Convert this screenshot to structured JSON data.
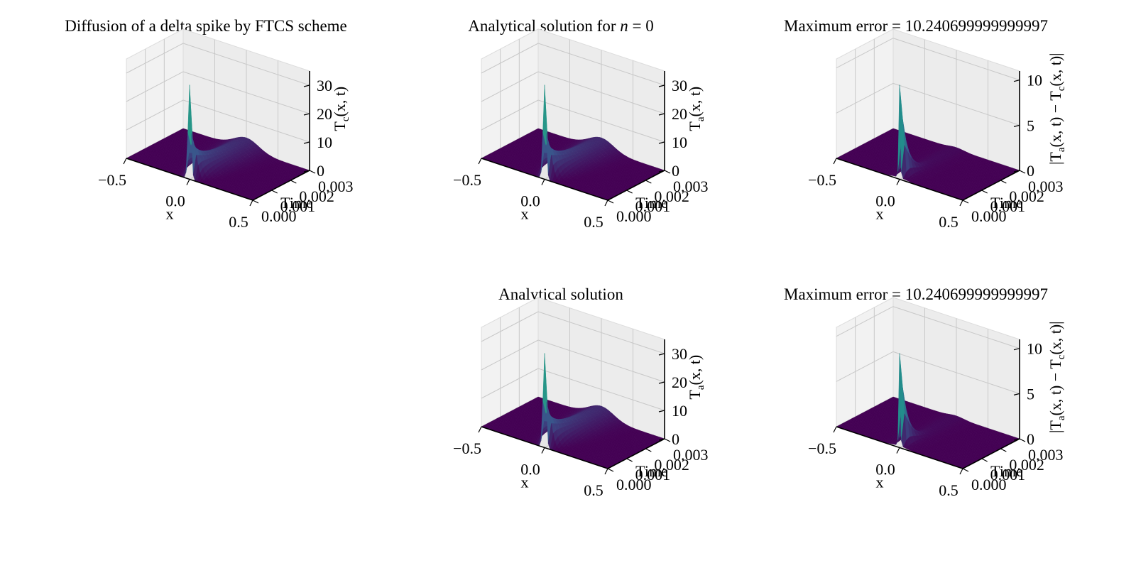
{
  "figure": {
    "panels": [
      {
        "id": "p1",
        "row": 0,
        "col": 0,
        "title": "Diffusion of a delta spike by FTCS scheme",
        "xlabel": "x",
        "ylabel": "Time",
        "zlabel_main": "T",
        "zlabel_sub": "c",
        "zlabel_rest": "(x, t)",
        "x_ticks": [
          "−0.5",
          "0.0",
          "0.5"
        ],
        "y_ticks": [
          "0.000",
          "0.001",
          "0.002",
          "0.003"
        ],
        "z_ticks": [
          "0",
          "10",
          "20",
          "30"
        ],
        "zmax": 35,
        "surface": "solution"
      },
      {
        "id": "p2",
        "row": 0,
        "col": 1,
        "title_text": "Analytical solution for ",
        "title_var": "n",
        "title_rest": " = 0",
        "xlabel": "x",
        "ylabel": "Time",
        "zlabel_main": "T",
        "zlabel_sub": "a",
        "zlabel_rest": "(x, t)",
        "x_ticks": [
          "−0.5",
          "0.0",
          "0.5"
        ],
        "y_ticks": [
          "0.000",
          "0.001",
          "0.002",
          "0.003"
        ],
        "z_ticks": [
          "0",
          "10",
          "20",
          "30"
        ],
        "zmax": 35,
        "surface": "solution"
      },
      {
        "id": "p3",
        "row": 0,
        "col": 2,
        "title": "Maximum error = 10.240699999999997",
        "xlabel": "x",
        "ylabel": "Time",
        "zlabel_main": "|T",
        "zlabel_sub": "a",
        "zlabel_rest": "(x, t) − T",
        "zlabel_sub2": "c",
        "zlabel_rest2": "(x, t)|",
        "x_ticks": [
          "−0.5",
          "0.0",
          "0.5"
        ],
        "y_ticks": [
          "0.000",
          "0.001",
          "0.002",
          "0.003"
        ],
        "z_ticks": [
          "0",
          "5",
          "10"
        ],
        "zmax": 11,
        "surface": "error"
      },
      {
        "id": "p4",
        "row": 1,
        "col": 1,
        "title": "Analytical solution",
        "xlabel": "x",
        "ylabel": "Time",
        "zlabel_main": "T",
        "zlabel_sub": "a",
        "zlabel_rest": "(x, t)",
        "x_ticks": [
          "−0.5",
          "0.0",
          "0.5"
        ],
        "y_ticks": [
          "0.000",
          "0.001",
          "0.002",
          "0.003"
        ],
        "z_ticks": [
          "0",
          "10",
          "20",
          "30"
        ],
        "zmax": 35,
        "surface": "solution"
      },
      {
        "id": "p5",
        "row": 1,
        "col": 2,
        "title": "Maximum error = 10.240699999999997",
        "xlabel": "x",
        "ylabel": "Time",
        "zlabel_main": "|T",
        "zlabel_sub": "a",
        "zlabel_rest": "(x, t) − T",
        "zlabel_sub2": "c",
        "zlabel_rest2": "(x, t)|",
        "x_ticks": [
          "−0.5",
          "0.0",
          "0.5"
        ],
        "y_ticks": [
          "0.000",
          "0.001",
          "0.002",
          "0.003"
        ],
        "z_ticks": [
          "0",
          "5",
          "10"
        ],
        "zmax": 11,
        "surface": "error"
      }
    ]
  },
  "chart_data": [
    {
      "type": "surface",
      "title": "Diffusion of a delta spike by FTCS scheme",
      "xlabel": "x",
      "ylabel": "Time",
      "zlabel": "Tc(x, t)",
      "xlim": [
        -0.5,
        0.5
      ],
      "ylim": [
        0.0,
        0.003
      ],
      "zlim": [
        0,
        35
      ],
      "peak": {
        "x": 0.0,
        "time": 0.0,
        "value": 35
      },
      "colormap": "viridis",
      "grid": true
    },
    {
      "type": "surface",
      "title": "Analytical solution for n = 0",
      "xlabel": "x",
      "ylabel": "Time",
      "zlabel": "Ta(x, t)",
      "xlim": [
        -0.5,
        0.5
      ],
      "ylim": [
        0.0,
        0.003
      ],
      "zlim": [
        0,
        35
      ],
      "peak": {
        "x": 0.0,
        "time": 0.0,
        "value": 35
      },
      "colormap": "viridis",
      "grid": true
    },
    {
      "type": "surface",
      "title": "Maximum error = 10.240699999999997",
      "xlabel": "x",
      "ylabel": "Time",
      "zlabel": "|Ta(x, t) − Tc(x, t)|",
      "xlim": [
        -0.5,
        0.5
      ],
      "ylim": [
        0.0,
        0.003
      ],
      "zlim": [
        0,
        11
      ],
      "peak": {
        "x": 0.0,
        "time": 0.0,
        "value": 10.240699999999997
      },
      "colormap": "viridis",
      "grid": true
    },
    {
      "type": "surface",
      "title": "Analytical solution",
      "xlabel": "x",
      "ylabel": "Time",
      "zlabel": "Ta(x, t)",
      "xlim": [
        -0.5,
        0.5
      ],
      "ylim": [
        0.0,
        0.003
      ],
      "zlim": [
        0,
        35
      ],
      "peak": {
        "x": 0.0,
        "time": 0.0,
        "value": 30
      },
      "colormap": "viridis",
      "grid": true
    },
    {
      "type": "surface",
      "title": "Maximum error = 10.240699999999997",
      "xlabel": "x",
      "ylabel": "Time",
      "zlabel": "|Ta(x, t) − Tc(x, t)|",
      "xlim": [
        -0.5,
        0.5
      ],
      "ylim": [
        0.0,
        0.003
      ],
      "zlim": [
        0,
        11
      ],
      "peak": {
        "x": 0.0,
        "time": 0.0,
        "value": 10.240699999999997
      },
      "colormap": "viridis",
      "grid": true
    }
  ]
}
